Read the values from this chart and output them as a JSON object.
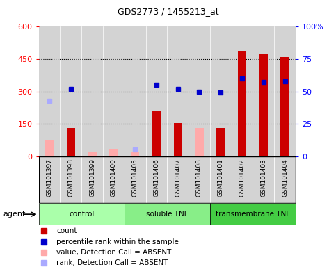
{
  "title": "GDS2773 / 1455213_at",
  "samples": [
    "GSM101397",
    "GSM101398",
    "GSM101399",
    "GSM101400",
    "GSM101405",
    "GSM101406",
    "GSM101407",
    "GSM101408",
    "GSM101401",
    "GSM101402",
    "GSM101403",
    "GSM101404"
  ],
  "groups": [
    {
      "name": "control",
      "color": "#aaffaa",
      "start": 0,
      "end": 4
    },
    {
      "name": "soluble TNF",
      "color": "#88ee88",
      "start": 4,
      "end": 8
    },
    {
      "name": "transmembrane TNF",
      "color": "#44cc44",
      "start": 8,
      "end": 12
    }
  ],
  "count_values": [
    null,
    130,
    8,
    12,
    15,
    210,
    155,
    null,
    130,
    490,
    475,
    460
  ],
  "rank_values_pct": [
    null,
    52,
    null,
    null,
    null,
    55,
    52,
    50,
    49,
    60,
    57,
    58
  ],
  "absent_value": [
    75,
    null,
    20,
    30,
    20,
    null,
    null,
    130,
    null,
    null,
    null,
    null
  ],
  "absent_rank_pct": [
    43,
    null,
    null,
    null,
    5,
    null,
    null,
    null,
    null,
    null,
    null,
    null
  ],
  "ylim_left": [
    0,
    600
  ],
  "ylim_right": [
    0,
    100
  ],
  "yticks_left": [
    0,
    150,
    300,
    450,
    600
  ],
  "yticks_right": [
    0,
    25,
    50,
    75,
    100
  ],
  "ytick_labels_left": [
    "0",
    "150",
    "300",
    "450",
    "600"
  ],
  "ytick_labels_right": [
    "0",
    "25",
    "50",
    "75",
    "100%"
  ],
  "bar_color": "#cc0000",
  "rank_color": "#0000cc",
  "absent_bar_color": "#ffaaaa",
  "absent_rank_color": "#aaaaff",
  "col_bg_color": "#d3d3d3",
  "plot_bg_color": "#ffffff",
  "legend_items": [
    {
      "label": "count",
      "color": "#cc0000"
    },
    {
      "label": "percentile rank within the sample",
      "color": "#0000cc"
    },
    {
      "label": "value, Detection Call = ABSENT",
      "color": "#ffaaaa"
    },
    {
      "label": "rank, Detection Call = ABSENT",
      "color": "#aaaaff"
    }
  ]
}
